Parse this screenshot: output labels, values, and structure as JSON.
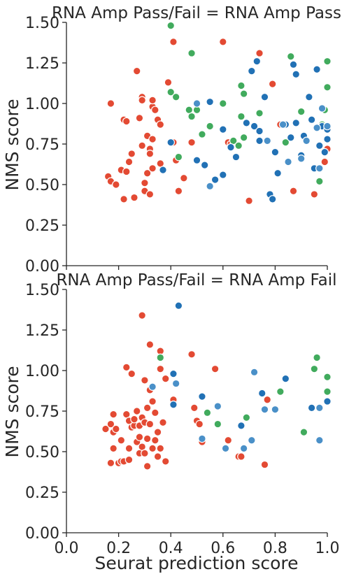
{
  "colors": {
    "red": "#e34a33",
    "green": "#41ab5d",
    "blue": "#2171b5",
    "lightblue": "#4a90c8"
  },
  "chart_data": [
    {
      "type": "scatter",
      "title": "RNA Amp Pass/Fail = RNA Amp Pass",
      "xlabel": "",
      "ylabel": "NMS score",
      "xlim": [
        0,
        1.0
      ],
      "ylim": [
        0,
        1.5
      ],
      "yticks": [
        "0.00",
        "0.25",
        "0.50",
        "0.75",
        "1.00",
        "1.25",
        "1.50"
      ],
      "xticks": [],
      "points": [
        {
          "x": 0.17,
          "y": 1.0,
          "c": "red"
        },
        {
          "x": 0.16,
          "y": 0.55,
          "c": "red"
        },
        {
          "x": 0.17,
          "y": 0.52,
          "c": "red"
        },
        {
          "x": 0.19,
          "y": 0.5,
          "c": "red"
        },
        {
          "x": 0.21,
          "y": 0.59,
          "c": "red"
        },
        {
          "x": 0.22,
          "y": 0.41,
          "c": "red"
        },
        {
          "x": 0.23,
          "y": 0.58,
          "c": "red"
        },
        {
          "x": 0.22,
          "y": 0.9,
          "c": "red"
        },
        {
          "x": 0.23,
          "y": 0.89,
          "c": "red"
        },
        {
          "x": 0.25,
          "y": 0.69,
          "c": "red"
        },
        {
          "x": 0.24,
          "y": 0.64,
          "c": "red"
        },
        {
          "x": 0.26,
          "y": 0.42,
          "c": "red"
        },
        {
          "x": 0.27,
          "y": 1.2,
          "c": "red"
        },
        {
          "x": 0.28,
          "y": 0.91,
          "c": "red"
        },
        {
          "x": 0.29,
          "y": 1.04,
          "c": "red"
        },
        {
          "x": 0.29,
          "y": 1.02,
          "c": "red"
        },
        {
          "x": 0.29,
          "y": 0.74,
          "c": "red"
        },
        {
          "x": 0.3,
          "y": 0.46,
          "c": "red"
        },
        {
          "x": 0.3,
          "y": 0.51,
          "c": "red"
        },
        {
          "x": 0.31,
          "y": 0.57,
          "c": "red"
        },
        {
          "x": 0.31,
          "y": 0.8,
          "c": "red"
        },
        {
          "x": 0.32,
          "y": 0.72,
          "c": "red"
        },
        {
          "x": 0.32,
          "y": 0.69,
          "c": "red"
        },
        {
          "x": 0.32,
          "y": 0.44,
          "c": "red"
        },
        {
          "x": 0.33,
          "y": 0.6,
          "c": "red"
        },
        {
          "x": 0.33,
          "y": 0.78,
          "c": "red"
        },
        {
          "x": 0.33,
          "y": 0.98,
          "c": "red"
        },
        {
          "x": 0.33,
          "y": 1.02,
          "c": "red"
        },
        {
          "x": 0.34,
          "y": 0.96,
          "c": "red"
        },
        {
          "x": 0.35,
          "y": 0.9,
          "c": "red"
        },
        {
          "x": 0.36,
          "y": 0.87,
          "c": "red"
        },
        {
          "x": 0.36,
          "y": 0.63,
          "c": "red"
        },
        {
          "x": 0.39,
          "y": 1.13,
          "c": "red"
        },
        {
          "x": 0.41,
          "y": 1.38,
          "c": "red"
        },
        {
          "x": 0.41,
          "y": 0.76,
          "c": "red"
        },
        {
          "x": 0.42,
          "y": 0.65,
          "c": "red"
        },
        {
          "x": 0.43,
          "y": 0.46,
          "c": "red"
        },
        {
          "x": 0.45,
          "y": 0.54,
          "c": "red"
        },
        {
          "x": 0.48,
          "y": 0.76,
          "c": "red"
        },
        {
          "x": 0.6,
          "y": 1.38,
          "c": "red"
        },
        {
          "x": 0.62,
          "y": 0.76,
          "c": "red"
        },
        {
          "x": 0.63,
          "y": 0.75,
          "c": "red"
        },
        {
          "x": 0.7,
          "y": 0.4,
          "c": "red"
        },
        {
          "x": 0.74,
          "y": 1.31,
          "c": "red"
        },
        {
          "x": 0.79,
          "y": 1.12,
          "c": "red"
        },
        {
          "x": 0.82,
          "y": 0.87,
          "c": "red"
        },
        {
          "x": 0.87,
          "y": 0.46,
          "c": "red"
        },
        {
          "x": 0.95,
          "y": 0.44,
          "c": "red"
        },
        {
          "x": 0.99,
          "y": 0.64,
          "c": "red"
        },
        {
          "x": 1.0,
          "y": 0.72,
          "c": "red"
        },
        {
          "x": 0.4,
          "y": 1.48,
          "c": "green"
        },
        {
          "x": 0.4,
          "y": 1.07,
          "c": "green"
        },
        {
          "x": 0.42,
          "y": 1.04,
          "c": "green"
        },
        {
          "x": 0.43,
          "y": 0.67,
          "c": "green"
        },
        {
          "x": 0.47,
          "y": 0.96,
          "c": "green"
        },
        {
          "x": 0.48,
          "y": 1.31,
          "c": "green"
        },
        {
          "x": 0.48,
          "y": 0.92,
          "c": "green"
        },
        {
          "x": 0.5,
          "y": 0.96,
          "c": "green"
        },
        {
          "x": 0.52,
          "y": 0.81,
          "c": "green"
        },
        {
          "x": 0.55,
          "y": 0.86,
          "c": "green"
        },
        {
          "x": 0.6,
          "y": 1.0,
          "c": "green"
        },
        {
          "x": 0.64,
          "y": 0.77,
          "c": "green"
        },
        {
          "x": 0.66,
          "y": 0.74,
          "c": "green"
        },
        {
          "x": 0.67,
          "y": 0.92,
          "c": "green"
        },
        {
          "x": 0.67,
          "y": 1.11,
          "c": "green"
        },
        {
          "x": 0.68,
          "y": 1.06,
          "c": "green"
        },
        {
          "x": 0.68,
          "y": 0.79,
          "c": "green"
        },
        {
          "x": 0.74,
          "y": 0.94,
          "c": "green"
        },
        {
          "x": 0.84,
          "y": 0.76,
          "c": "green"
        },
        {
          "x": 0.86,
          "y": 1.29,
          "c": "green"
        },
        {
          "x": 0.9,
          "y": 0.95,
          "c": "green"
        },
        {
          "x": 0.97,
          "y": 0.52,
          "c": "green"
        },
        {
          "x": 0.98,
          "y": 0.87,
          "c": "green"
        },
        {
          "x": 0.99,
          "y": 0.96,
          "c": "green"
        },
        {
          "x": 1.0,
          "y": 1.26,
          "c": "green"
        },
        {
          "x": 1.0,
          "y": 1.1,
          "c": "green"
        },
        {
          "x": 0.37,
          "y": 0.59,
          "c": "blue"
        },
        {
          "x": 0.4,
          "y": 0.76,
          "c": "blue"
        },
        {
          "x": 0.5,
          "y": 0.65,
          "c": "blue"
        },
        {
          "x": 0.53,
          "y": 0.62,
          "c": "blue"
        },
        {
          "x": 0.55,
          "y": 1.01,
          "c": "blue"
        },
        {
          "x": 0.57,
          "y": 0.53,
          "c": "blue"
        },
        {
          "x": 0.6,
          "y": 0.56,
          "c": "blue"
        },
        {
          "x": 0.6,
          "y": 0.84,
          "c": "blue"
        },
        {
          "x": 0.63,
          "y": 0.73,
          "c": "blue"
        },
        {
          "x": 0.65,
          "y": 0.67,
          "c": "blue"
        },
        {
          "x": 0.69,
          "y": 0.88,
          "c": "blue"
        },
        {
          "x": 0.71,
          "y": 1.2,
          "c": "blue"
        },
        {
          "x": 0.72,
          "y": 0.86,
          "c": "blue"
        },
        {
          "x": 0.73,
          "y": 1.26,
          "c": "blue"
        },
        {
          "x": 0.74,
          "y": 0.83,
          "c": "blue"
        },
        {
          "x": 0.74,
          "y": 0.77,
          "c": "blue"
        },
        {
          "x": 0.76,
          "y": 1.04,
          "c": "blue"
        },
        {
          "x": 0.78,
          "y": 0.44,
          "c": "blue"
        },
        {
          "x": 0.79,
          "y": 0.41,
          "c": "blue"
        },
        {
          "x": 0.8,
          "y": 0.7,
          "c": "blue"
        },
        {
          "x": 0.81,
          "y": 0.57,
          "c": "blue"
        },
        {
          "x": 0.84,
          "y": 0.87,
          "c": "blue"
        },
        {
          "x": 0.86,
          "y": 0.79,
          "c": "blue"
        },
        {
          "x": 0.87,
          "y": 1.24,
          "c": "blue"
        },
        {
          "x": 0.88,
          "y": 1.18,
          "c": "blue"
        },
        {
          "x": 0.88,
          "y": 0.88,
          "c": "blue"
        },
        {
          "x": 0.9,
          "y": 0.68,
          "c": "blue"
        },
        {
          "x": 0.91,
          "y": 0.8,
          "c": "blue"
        },
        {
          "x": 0.93,
          "y": 1.04,
          "c": "blue"
        },
        {
          "x": 0.94,
          "y": 0.9,
          "c": "blue"
        },
        {
          "x": 0.95,
          "y": 0.6,
          "c": "blue"
        },
        {
          "x": 0.96,
          "y": 1.21,
          "c": "blue"
        },
        {
          "x": 0.97,
          "y": 0.74,
          "c": "blue"
        },
        {
          "x": 0.98,
          "y": 0.86,
          "c": "blue"
        },
        {
          "x": 0.99,
          "y": 0.7,
          "c": "blue"
        },
        {
          "x": 1.0,
          "y": 0.84,
          "c": "blue"
        },
        {
          "x": 1.0,
          "y": 0.78,
          "c": "blue"
        },
        {
          "x": 0.5,
          "y": 1.0,
          "c": "lightblue"
        },
        {
          "x": 0.55,
          "y": 0.49,
          "c": "lightblue"
        },
        {
          "x": 0.77,
          "y": 0.77,
          "c": "lightblue"
        },
        {
          "x": 0.83,
          "y": 0.87,
          "c": "lightblue"
        },
        {
          "x": 0.85,
          "y": 0.64,
          "c": "lightblue"
        },
        {
          "x": 0.9,
          "y": 0.66,
          "c": "lightblue"
        },
        {
          "x": 0.92,
          "y": 0.77,
          "c": "lightblue"
        },
        {
          "x": 0.96,
          "y": 0.85,
          "c": "lightblue"
        },
        {
          "x": 0.98,
          "y": 0.97,
          "c": "lightblue"
        },
        {
          "x": 0.97,
          "y": 0.6,
          "c": "lightblue"
        },
        {
          "x": 1.0,
          "y": 0.86,
          "c": "lightblue"
        }
      ]
    },
    {
      "type": "scatter",
      "title": "RNA Amp Pass/Fail = RNA Amp Fail",
      "xlabel": "Seurat prediction score",
      "ylabel": "NMS score",
      "xlim": [
        0,
        1.0
      ],
      "ylim": [
        0,
        1.5
      ],
      "yticks": [
        "0.00",
        "0.25",
        "0.50",
        "0.75",
        "1.00",
        "1.25",
        "1.50"
      ],
      "xticks": [
        "0.0",
        "0.2",
        "0.4",
        "0.6",
        "0.8",
        "1.0"
      ],
      "points": [
        {
          "x": 0.15,
          "y": 0.64,
          "c": "red"
        },
        {
          "x": 0.17,
          "y": 0.67,
          "c": "red"
        },
        {
          "x": 0.17,
          "y": 0.43,
          "c": "red"
        },
        {
          "x": 0.18,
          "y": 0.73,
          "c": "red"
        },
        {
          "x": 0.18,
          "y": 0.52,
          "c": "red"
        },
        {
          "x": 0.18,
          "y": 0.62,
          "c": "red"
        },
        {
          "x": 0.19,
          "y": 0.64,
          "c": "red"
        },
        {
          "x": 0.2,
          "y": 0.43,
          "c": "red"
        },
        {
          "x": 0.21,
          "y": 0.57,
          "c": "red"
        },
        {
          "x": 0.21,
          "y": 0.44,
          "c": "red"
        },
        {
          "x": 0.22,
          "y": 0.44,
          "c": "red"
        },
        {
          "x": 0.23,
          "y": 1.02,
          "c": "red"
        },
        {
          "x": 0.23,
          "y": 0.73,
          "c": "red"
        },
        {
          "x": 0.24,
          "y": 0.69,
          "c": "red"
        },
        {
          "x": 0.24,
          "y": 0.52,
          "c": "red"
        },
        {
          "x": 0.24,
          "y": 0.45,
          "c": "red"
        },
        {
          "x": 0.25,
          "y": 0.98,
          "c": "red"
        },
        {
          "x": 0.25,
          "y": 0.65,
          "c": "red"
        },
        {
          "x": 0.26,
          "y": 0.66,
          "c": "red"
        },
        {
          "x": 0.26,
          "y": 0.7,
          "c": "red"
        },
        {
          "x": 0.27,
          "y": 0.75,
          "c": "red"
        },
        {
          "x": 0.27,
          "y": 0.56,
          "c": "red"
        },
        {
          "x": 0.28,
          "y": 0.49,
          "c": "red"
        },
        {
          "x": 0.28,
          "y": 0.59,
          "c": "red"
        },
        {
          "x": 0.28,
          "y": 0.66,
          "c": "red"
        },
        {
          "x": 0.29,
          "y": 1.34,
          "c": "red"
        },
        {
          "x": 0.29,
          "y": 0.71,
          "c": "red"
        },
        {
          "x": 0.29,
          "y": 0.53,
          "c": "red"
        },
        {
          "x": 0.3,
          "y": 0.94,
          "c": "red"
        },
        {
          "x": 0.3,
          "y": 0.68,
          "c": "red"
        },
        {
          "x": 0.3,
          "y": 0.49,
          "c": "red"
        },
        {
          "x": 0.31,
          "y": 0.58,
          "c": "red"
        },
        {
          "x": 0.31,
          "y": 0.77,
          "c": "red"
        },
        {
          "x": 0.31,
          "y": 0.41,
          "c": "red"
        },
        {
          "x": 0.32,
          "y": 1.16,
          "c": "red"
        },
        {
          "x": 0.32,
          "y": 0.88,
          "c": "red"
        },
        {
          "x": 0.32,
          "y": 0.67,
          "c": "red"
        },
        {
          "x": 0.33,
          "y": 0.81,
          "c": "red"
        },
        {
          "x": 0.33,
          "y": 0.52,
          "c": "red"
        },
        {
          "x": 0.34,
          "y": 0.57,
          "c": "red"
        },
        {
          "x": 0.34,
          "y": 0.74,
          "c": "red"
        },
        {
          "x": 0.35,
          "y": 0.62,
          "c": "red"
        },
        {
          "x": 0.35,
          "y": 0.47,
          "c": "red"
        },
        {
          "x": 0.36,
          "y": 1.12,
          "c": "red"
        },
        {
          "x": 0.36,
          "y": 1.01,
          "c": "red"
        },
        {
          "x": 0.36,
          "y": 0.52,
          "c": "red"
        },
        {
          "x": 0.37,
          "y": 0.68,
          "c": "red"
        },
        {
          "x": 0.38,
          "y": 0.44,
          "c": "red"
        },
        {
          "x": 0.38,
          "y": 0.95,
          "c": "red"
        },
        {
          "x": 0.41,
          "y": 0.82,
          "c": "red"
        },
        {
          "x": 0.48,
          "y": 1.1,
          "c": "red"
        },
        {
          "x": 0.49,
          "y": 0.77,
          "c": "red"
        },
        {
          "x": 0.5,
          "y": 0.69,
          "c": "red"
        },
        {
          "x": 0.51,
          "y": 0.67,
          "c": "red"
        },
        {
          "x": 0.52,
          "y": 0.56,
          "c": "red"
        },
        {
          "x": 0.57,
          "y": 1.01,
          "c": "red"
        },
        {
          "x": 0.62,
          "y": 0.57,
          "c": "red"
        },
        {
          "x": 0.66,
          "y": 0.47,
          "c": "red"
        },
        {
          "x": 0.67,
          "y": 0.47,
          "c": "red"
        },
        {
          "x": 0.76,
          "y": 0.42,
          "c": "red"
        },
        {
          "x": 0.77,
          "y": 0.82,
          "c": "red"
        },
        {
          "x": 0.36,
          "y": 1.08,
          "c": "green"
        },
        {
          "x": 0.54,
          "y": 0.74,
          "c": "green"
        },
        {
          "x": 0.58,
          "y": 0.67,
          "c": "green"
        },
        {
          "x": 0.69,
          "y": 0.71,
          "c": "green"
        },
        {
          "x": 0.82,
          "y": 0.87,
          "c": "green"
        },
        {
          "x": 0.91,
          "y": 0.62,
          "c": "green"
        },
        {
          "x": 0.95,
          "y": 1.01,
          "c": "green"
        },
        {
          "x": 0.96,
          "y": 1.08,
          "c": "green"
        },
        {
          "x": 1.0,
          "y": 0.96,
          "c": "green"
        },
        {
          "x": 1.0,
          "y": 0.87,
          "c": "green"
        },
        {
          "x": 0.43,
          "y": 1.4,
          "c": "blue"
        },
        {
          "x": 0.41,
          "y": 0.98,
          "c": "blue"
        },
        {
          "x": 0.41,
          "y": 0.79,
          "c": "blue"
        },
        {
          "x": 0.52,
          "y": 0.84,
          "c": "blue"
        },
        {
          "x": 0.67,
          "y": 0.66,
          "c": "blue"
        },
        {
          "x": 0.75,
          "y": 0.86,
          "c": "blue"
        },
        {
          "x": 0.84,
          "y": 0.95,
          "c": "blue"
        },
        {
          "x": 0.94,
          "y": 0.77,
          "c": "blue"
        },
        {
          "x": 1.0,
          "y": 0.81,
          "c": "blue"
        },
        {
          "x": 0.33,
          "y": 0.9,
          "c": "lightblue"
        },
        {
          "x": 0.42,
          "y": 0.92,
          "c": "lightblue"
        },
        {
          "x": 0.52,
          "y": 0.58,
          "c": "lightblue"
        },
        {
          "x": 0.58,
          "y": 0.78,
          "c": "lightblue"
        },
        {
          "x": 0.61,
          "y": 0.52,
          "c": "lightblue"
        },
        {
          "x": 0.68,
          "y": 0.52,
          "c": "lightblue"
        },
        {
          "x": 0.71,
          "y": 0.57,
          "c": "lightblue"
        },
        {
          "x": 0.72,
          "y": 0.99,
          "c": "lightblue"
        },
        {
          "x": 0.76,
          "y": 0.76,
          "c": "lightblue"
        },
        {
          "x": 0.8,
          "y": 0.76,
          "c": "lightblue"
        },
        {
          "x": 0.97,
          "y": 0.57,
          "c": "lightblue"
        },
        {
          "x": 0.97,
          "y": 0.77,
          "c": "lightblue"
        }
      ]
    }
  ]
}
